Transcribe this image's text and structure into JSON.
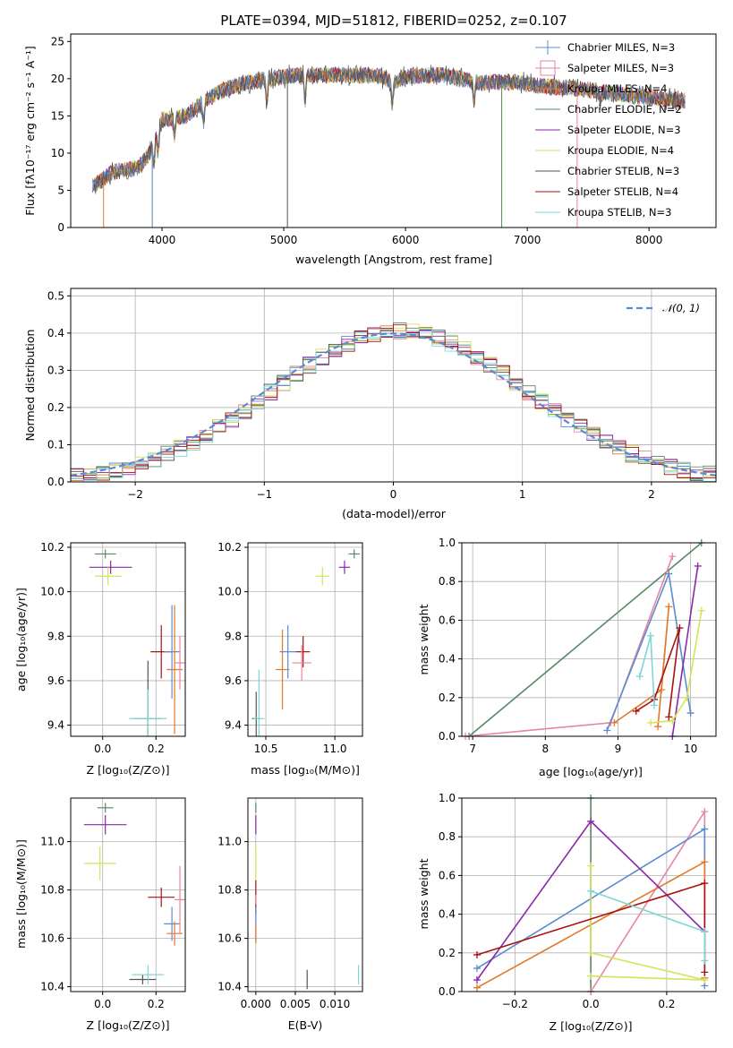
{
  "page": {
    "title": "PLATE=0394, MJD=51812, FIBERID=0252, z=0.107"
  },
  "chart_data": [
    {
      "id": "spectrum",
      "type": "line",
      "title": "PLATE=0394, MJD=51812, FIBERID=0252, z=0.107",
      "xlabel": "wavelength [Angstrom, rest frame]",
      "ylabel": "Flux [fλ10⁻¹⁷ erg cm⁻² s⁻¹ A⁻¹]",
      "xlim": [
        3250,
        8550
      ],
      "ylim": [
        0,
        26
      ],
      "xticks": [
        4000,
        5000,
        6000,
        7000,
        8000
      ],
      "yticks": [
        0,
        5,
        10,
        15,
        20,
        25
      ],
      "grid": false,
      "legend": "upper right",
      "continuum": [
        [
          3430,
          5.5
        ],
        [
          3600,
          7.5
        ],
        [
          3800,
          8.0
        ],
        [
          3900,
          10.0
        ],
        [
          4000,
          14.5
        ],
        [
          4200,
          15.0
        ],
        [
          4300,
          16.5
        ],
        [
          4500,
          18.5
        ],
        [
          4700,
          19.5
        ],
        [
          4900,
          20.0
        ],
        [
          5100,
          20.5
        ],
        [
          5300,
          20.5
        ],
        [
          5500,
          20.5
        ],
        [
          5800,
          20.3
        ],
        [
          5900,
          19.5
        ],
        [
          6000,
          20.3
        ],
        [
          6300,
          20.5
        ],
        [
          6600,
          19.5
        ],
        [
          6900,
          19.5
        ],
        [
          7100,
          19.0
        ],
        [
          7300,
          18.8
        ],
        [
          7500,
          18.5
        ],
        [
          7700,
          18.0
        ],
        [
          8000,
          17.5
        ],
        [
          8300,
          17.0
        ]
      ],
      "series": [
        {
          "name": "Chabrier MILES, N<sub>SSP</sub>=3",
          "color": "#5b8bd0",
          "marker": "plus"
        },
        {
          "name": "Salpeter MILES, N<sub>SSP</sub>=3",
          "color": "#e8869f",
          "marker": "square"
        },
        {
          "name": "Kroupa MILES, N<sub>SSP</sub>=4",
          "color": "#e07a2a",
          "marker": "line"
        },
        {
          "name": "Chabrier ELODIE, N<sub>SSP</sub>=2",
          "color": "#558866",
          "marker": "line"
        },
        {
          "name": "Salpeter ELODIE, N<sub>SSP</sub>=3",
          "color": "#8a2aa8",
          "marker": "line"
        },
        {
          "name": "Kroupa ELODIE, N<sub>SSP</sub>=4",
          "color": "#d4e35a",
          "marker": "line"
        },
        {
          "name": "Chabrier STELIB, N<sub>SSP</sub>=3",
          "color": "#555555",
          "marker": "line"
        },
        {
          "name": "Salpeter STELIB, N<sub>SSP</sub>=4",
          "color": "#aa1111",
          "marker": "line"
        },
        {
          "name": "Kroupa STELIB, N<sub>SSP</sub>=3",
          "color": "#7fd6d6",
          "marker": "line"
        }
      ]
    },
    {
      "id": "residuals",
      "type": "histogram",
      "xlabel": "(data-model)/error",
      "ylabel": "Normed distribution",
      "xlim": [
        -2.5,
        2.5
      ],
      "ylim": [
        0,
        0.52
      ],
      "xticks": [
        -2,
        -1,
        0,
        1,
        2
      ],
      "xtick_labels": [
        "−2",
        "−1",
        "0",
        "1",
        "2"
      ],
      "yticks": [
        0.0,
        0.1,
        0.2,
        0.3,
        0.4,
        0.5
      ],
      "ytick_labels": [
        "0.0",
        "0.1",
        "0.2",
        "0.3",
        "0.4",
        "0.5"
      ],
      "grid": true,
      "legend": "upper right",
      "reference": {
        "name": "𝒩(0, 1)",
        "color": "#5b8bd0",
        "style": "dashed"
      },
      "bin_width": 0.1
    },
    {
      "id": "age-vs-Z",
      "type": "scatter",
      "xlabel": "Z [log₁₀(Z/Z⊙)]",
      "ylabel": "age  [log₁₀(age/yr)]",
      "xlim": [
        -0.12,
        0.31
      ],
      "ylim": [
        9.35,
        10.22
      ],
      "xticks": [
        0.0,
        0.2
      ],
      "xtick_labels": [
        "0.0",
        "0.2"
      ],
      "yticks": [
        9.4,
        9.6,
        9.8,
        10.0,
        10.2
      ],
      "ytick_labels": [
        "9.4",
        "9.6",
        "9.8",
        "10.0",
        "10.2"
      ],
      "grid": true,
      "points": [
        {
          "x": 0.01,
          "y": 10.17,
          "xerr": 0.04,
          "yerr": 0.02,
          "color": "#558866"
        },
        {
          "x": 0.03,
          "y": 10.11,
          "xerr": 0.08,
          "yerr": 0.03,
          "color": "#8a2aa8"
        },
        {
          "x": 0.02,
          "y": 10.07,
          "xerr": 0.05,
          "yerr": 0.04,
          "color": "#d4e35a"
        },
        {
          "x": 0.22,
          "y": 9.73,
          "xerr": 0.04,
          "yerr": 0.12,
          "color": "#aa1111"
        },
        {
          "x": 0.26,
          "y": 9.73,
          "xerr": 0.03,
          "yerr": 0.21,
          "color": "#5b8bd0"
        },
        {
          "x": 0.27,
          "y": 9.65,
          "xerr": 0.03,
          "yerr": 0.29,
          "color": "#e07a2a"
        },
        {
          "x": 0.29,
          "y": 9.68,
          "xerr": 0.02,
          "yerr": 0.12,
          "color": "#e8869f"
        },
        {
          "x": 0.17,
          "y": 9.43,
          "xerr": 0.05,
          "yerr": 0.26,
          "color": "#555555"
        },
        {
          "x": 0.17,
          "y": 9.43,
          "xerr": 0.07,
          "yerr": 0.13,
          "color": "#7fd6d6"
        }
      ]
    },
    {
      "id": "age-vs-mass",
      "type": "scatter",
      "xlabel": "mass [log₁₀(M/M⊙)]",
      "ylabel": "",
      "xlim": [
        10.37,
        11.2
      ],
      "ylim": [
        9.35,
        10.22
      ],
      "xticks": [
        10.5,
        11.0
      ],
      "xtick_labels": [
        "10.5",
        "11.0"
      ],
      "yticks": [
        9.4,
        9.6,
        9.8,
        10.0,
        10.2
      ],
      "ytick_labels": [
        "9.4",
        "9.6",
        "9.8",
        "10.0",
        "10.2"
      ],
      "grid": true,
      "points": [
        {
          "x": 11.14,
          "y": 10.17,
          "xerr": 0.04,
          "yerr": 0.02,
          "color": "#558866"
        },
        {
          "x": 11.07,
          "y": 10.11,
          "xerr": 0.04,
          "yerr": 0.03,
          "color": "#8a2aa8"
        },
        {
          "x": 10.91,
          "y": 10.07,
          "xerr": 0.05,
          "yerr": 0.04,
          "color": "#d4e35a"
        },
        {
          "x": 10.77,
          "y": 9.73,
          "xerr": 0.05,
          "yerr": 0.07,
          "color": "#aa1111"
        },
        {
          "x": 10.66,
          "y": 9.73,
          "xerr": 0.06,
          "yerr": 0.12,
          "color": "#5b8bd0"
        },
        {
          "x": 10.62,
          "y": 9.65,
          "xerr": 0.05,
          "yerr": 0.18,
          "color": "#e07a2a"
        },
        {
          "x": 10.76,
          "y": 9.68,
          "xerr": 0.07,
          "yerr": 0.08,
          "color": "#e8869f"
        },
        {
          "x": 10.43,
          "y": 9.43,
          "xerr": 0.03,
          "yerr": 0.12,
          "color": "#555555"
        },
        {
          "x": 10.45,
          "y": 9.43,
          "xerr": 0.04,
          "yerr": 0.22,
          "color": "#7fd6d6"
        }
      ]
    },
    {
      "id": "weight-vs-age",
      "type": "line",
      "xlabel": "age  [log₁₀(age/yr)]",
      "ylabel": "mass weight",
      "xlim": [
        6.85,
        10.35
      ],
      "ylim": [
        0,
        1.0
      ],
      "xticks": [
        7,
        8,
        9,
        10
      ],
      "xtick_labels": [
        "7",
        "8",
        "9",
        "10"
      ],
      "yticks": [
        0.0,
        0.2,
        0.4,
        0.6,
        0.8,
        1.0
      ],
      "ytick_labels": [
        "0.0",
        "0.2",
        "0.4",
        "0.6",
        "0.8",
        "1.0"
      ],
      "grid": true,
      "series": [
        {
          "color": "#558866",
          "points": [
            [
              6.95,
              0.0
            ],
            [
              10.15,
              1.0
            ]
          ]
        },
        {
          "color": "#e8869f",
          "points": [
            [
              6.9,
              0.0
            ],
            [
              8.9,
              0.07
            ],
            [
              9.75,
              0.93
            ]
          ]
        },
        {
          "color": "#5b8bd0",
          "points": [
            [
              8.85,
              0.03
            ],
            [
              9.7,
              0.84
            ],
            [
              10.0,
              0.12
            ]
          ]
        },
        {
          "color": "#e07a2a",
          "points": [
            [
              8.95,
              0.07
            ],
            [
              9.6,
              0.24
            ],
            [
              9.7,
              0.67
            ],
            [
              9.55,
              0.05
            ]
          ]
        },
        {
          "color": "#8a2aa8",
          "points": [
            [
              9.75,
              0.0
            ],
            [
              10.1,
              0.88
            ]
          ]
        },
        {
          "color": "#d4e35a",
          "points": [
            [
              9.45,
              0.07
            ],
            [
              9.75,
              0.08
            ],
            [
              9.95,
              0.2
            ],
            [
              10.15,
              0.65
            ]
          ]
        },
        {
          "color": "#aa1111",
          "points": [
            [
              9.25,
              0.13
            ],
            [
              9.5,
              0.19
            ],
            [
              9.85,
              0.56
            ],
            [
              9.7,
              0.1
            ]
          ]
        },
        {
          "color": "#7fd6d6",
          "points": [
            [
              9.3,
              0.31
            ],
            [
              9.45,
              0.52
            ],
            [
              9.5,
              0.16
            ]
          ]
        }
      ]
    },
    {
      "id": "mass-vs-Z",
      "type": "scatter",
      "xlabel": "Z [log₁₀(Z/Z⊙)]",
      "ylabel": "mass [log₁₀(M/M⊙)]",
      "xlim": [
        -0.12,
        0.31
      ],
      "ylim": [
        10.38,
        11.18
      ],
      "xticks": [
        0.0,
        0.2
      ],
      "xtick_labels": [
        "0.0",
        "0.2"
      ],
      "yticks": [
        10.4,
        10.6,
        10.8,
        11.0
      ],
      "ytick_labels": [
        "10.4",
        "10.6",
        "10.8",
        "11.0"
      ],
      "grid": true,
      "points": [
        {
          "x": 0.01,
          "y": 11.14,
          "xerr": 0.03,
          "yerr": 0.02,
          "color": "#558866"
        },
        {
          "x": 0.01,
          "y": 11.07,
          "xerr": 0.08,
          "yerr": 0.04,
          "color": "#8a2aa8"
        },
        {
          "x": -0.01,
          "y": 10.91,
          "xerr": 0.06,
          "yerr": 0.07,
          "color": "#d4e35a"
        },
        {
          "x": 0.22,
          "y": 10.77,
          "xerr": 0.05,
          "yerr": 0.04,
          "color": "#aa1111"
        },
        {
          "x": 0.26,
          "y": 10.66,
          "xerr": 0.03,
          "yerr": 0.07,
          "color": "#5b8bd0"
        },
        {
          "x": 0.27,
          "y": 10.62,
          "xerr": 0.03,
          "yerr": 0.05,
          "color": "#e07a2a"
        },
        {
          "x": 0.29,
          "y": 10.76,
          "xerr": 0.02,
          "yerr": 0.14,
          "color": "#e8869f"
        },
        {
          "x": 0.15,
          "y": 10.43,
          "xerr": 0.05,
          "yerr": 0.02,
          "color": "#555555"
        },
        {
          "x": 0.17,
          "y": 10.45,
          "xerr": 0.06,
          "yerr": 0.04,
          "color": "#7fd6d6"
        }
      ]
    },
    {
      "id": "mass-vs-EBV",
      "type": "scatter",
      "xlabel": "E(B-V)",
      "ylabel": "",
      "xlim": [
        -0.001,
        0.0135
      ],
      "ylim": [
        10.38,
        11.18
      ],
      "xticks": [
        0.0,
        0.005,
        0.01
      ],
      "xtick_labels": [
        "0.000",
        "0.005",
        "0.010"
      ],
      "yticks": [
        10.4,
        10.6,
        10.8,
        11.0
      ],
      "ytick_labels": [
        "10.4",
        "10.6",
        "10.8",
        "11.0"
      ],
      "grid": true,
      "points": [
        {
          "x": 0.0,
          "y": 11.14,
          "xerr": 0.0,
          "yerr": 0.02,
          "color": "#558866"
        },
        {
          "x": 0.0,
          "y": 11.07,
          "xerr": 0.0,
          "yerr": 0.04,
          "color": "#8a2aa8"
        },
        {
          "x": 0.0,
          "y": 10.91,
          "xerr": 0.0,
          "yerr": 0.07,
          "color": "#d4e35a"
        },
        {
          "x": 0.0,
          "y": 10.77,
          "xerr": 0.0,
          "yerr": 0.07,
          "color": "#aa1111"
        },
        {
          "x": 0.0,
          "y": 10.66,
          "xerr": 0.0,
          "yerr": 0.07,
          "color": "#5b8bd0"
        },
        {
          "x": 0.0,
          "y": 10.62,
          "xerr": 0.0,
          "yerr": 0.04,
          "color": "#e07a2a"
        },
        {
          "x": 0.0,
          "y": 10.76,
          "xerr": 0.0,
          "yerr": 0.02,
          "color": "#e8869f"
        },
        {
          "x": 0.0065,
          "y": 10.43,
          "xerr": 0.0,
          "yerr": 0.04,
          "color": "#555555"
        },
        {
          "x": 0.013,
          "y": 10.45,
          "xerr": 0.0,
          "yerr": 0.04,
          "color": "#7fd6d6"
        }
      ]
    },
    {
      "id": "weight-vs-Z",
      "type": "line",
      "xlabel": "Z [log₁₀(Z/Z⊙)]",
      "ylabel": "mass weight",
      "xlim": [
        -0.34,
        0.33
      ],
      "ylim": [
        0,
        1.0
      ],
      "xticks": [
        -0.2,
        0.0,
        0.2
      ],
      "xtick_labels": [
        "−0.2",
        "0.0",
        "0.2"
      ],
      "yticks": [
        0.0,
        0.2,
        0.4,
        0.6,
        0.8,
        1.0
      ],
      "ytick_labels": [
        "0.0",
        "0.2",
        "0.4",
        "0.6",
        "0.8",
        "1.0"
      ],
      "grid": true,
      "series": [
        {
          "color": "#558866",
          "points": [
            [
              0.0,
              0.0
            ],
            [
              0.0,
              1.0
            ]
          ]
        },
        {
          "color": "#e8869f",
          "points": [
            [
              0.0,
              0.0
            ],
            [
              0.3,
              0.93
            ],
            [
              0.3,
              0.07
            ]
          ]
        },
        {
          "color": "#5b8bd0",
          "points": [
            [
              -0.3,
              0.12
            ],
            [
              0.3,
              0.84
            ],
            [
              0.3,
              0.03
            ]
          ]
        },
        {
          "color": "#e07a2a",
          "points": [
            [
              -0.3,
              0.02
            ],
            [
              0.3,
              0.67
            ],
            [
              0.3,
              0.07
            ]
          ]
        },
        {
          "color": "#8a2aa8",
          "points": [
            [
              -0.3,
              0.06
            ],
            [
              0.0,
              0.88
            ],
            [
              0.3,
              0.31
            ]
          ]
        },
        {
          "color": "#d4e35a",
          "points": [
            [
              0.0,
              0.65
            ],
            [
              0.0,
              0.2
            ],
            [
              0.3,
              0.06
            ],
            [
              0.0,
              0.08
            ]
          ]
        },
        {
          "color": "#aa1111",
          "points": [
            [
              -0.3,
              0.19
            ],
            [
              0.3,
              0.56
            ],
            [
              0.3,
              0.1
            ]
          ]
        },
        {
          "color": "#7fd6d6",
          "points": [
            [
              0.0,
              0.52
            ],
            [
              0.3,
              0.31
            ],
            [
              0.3,
              0.16
            ]
          ]
        }
      ]
    }
  ]
}
